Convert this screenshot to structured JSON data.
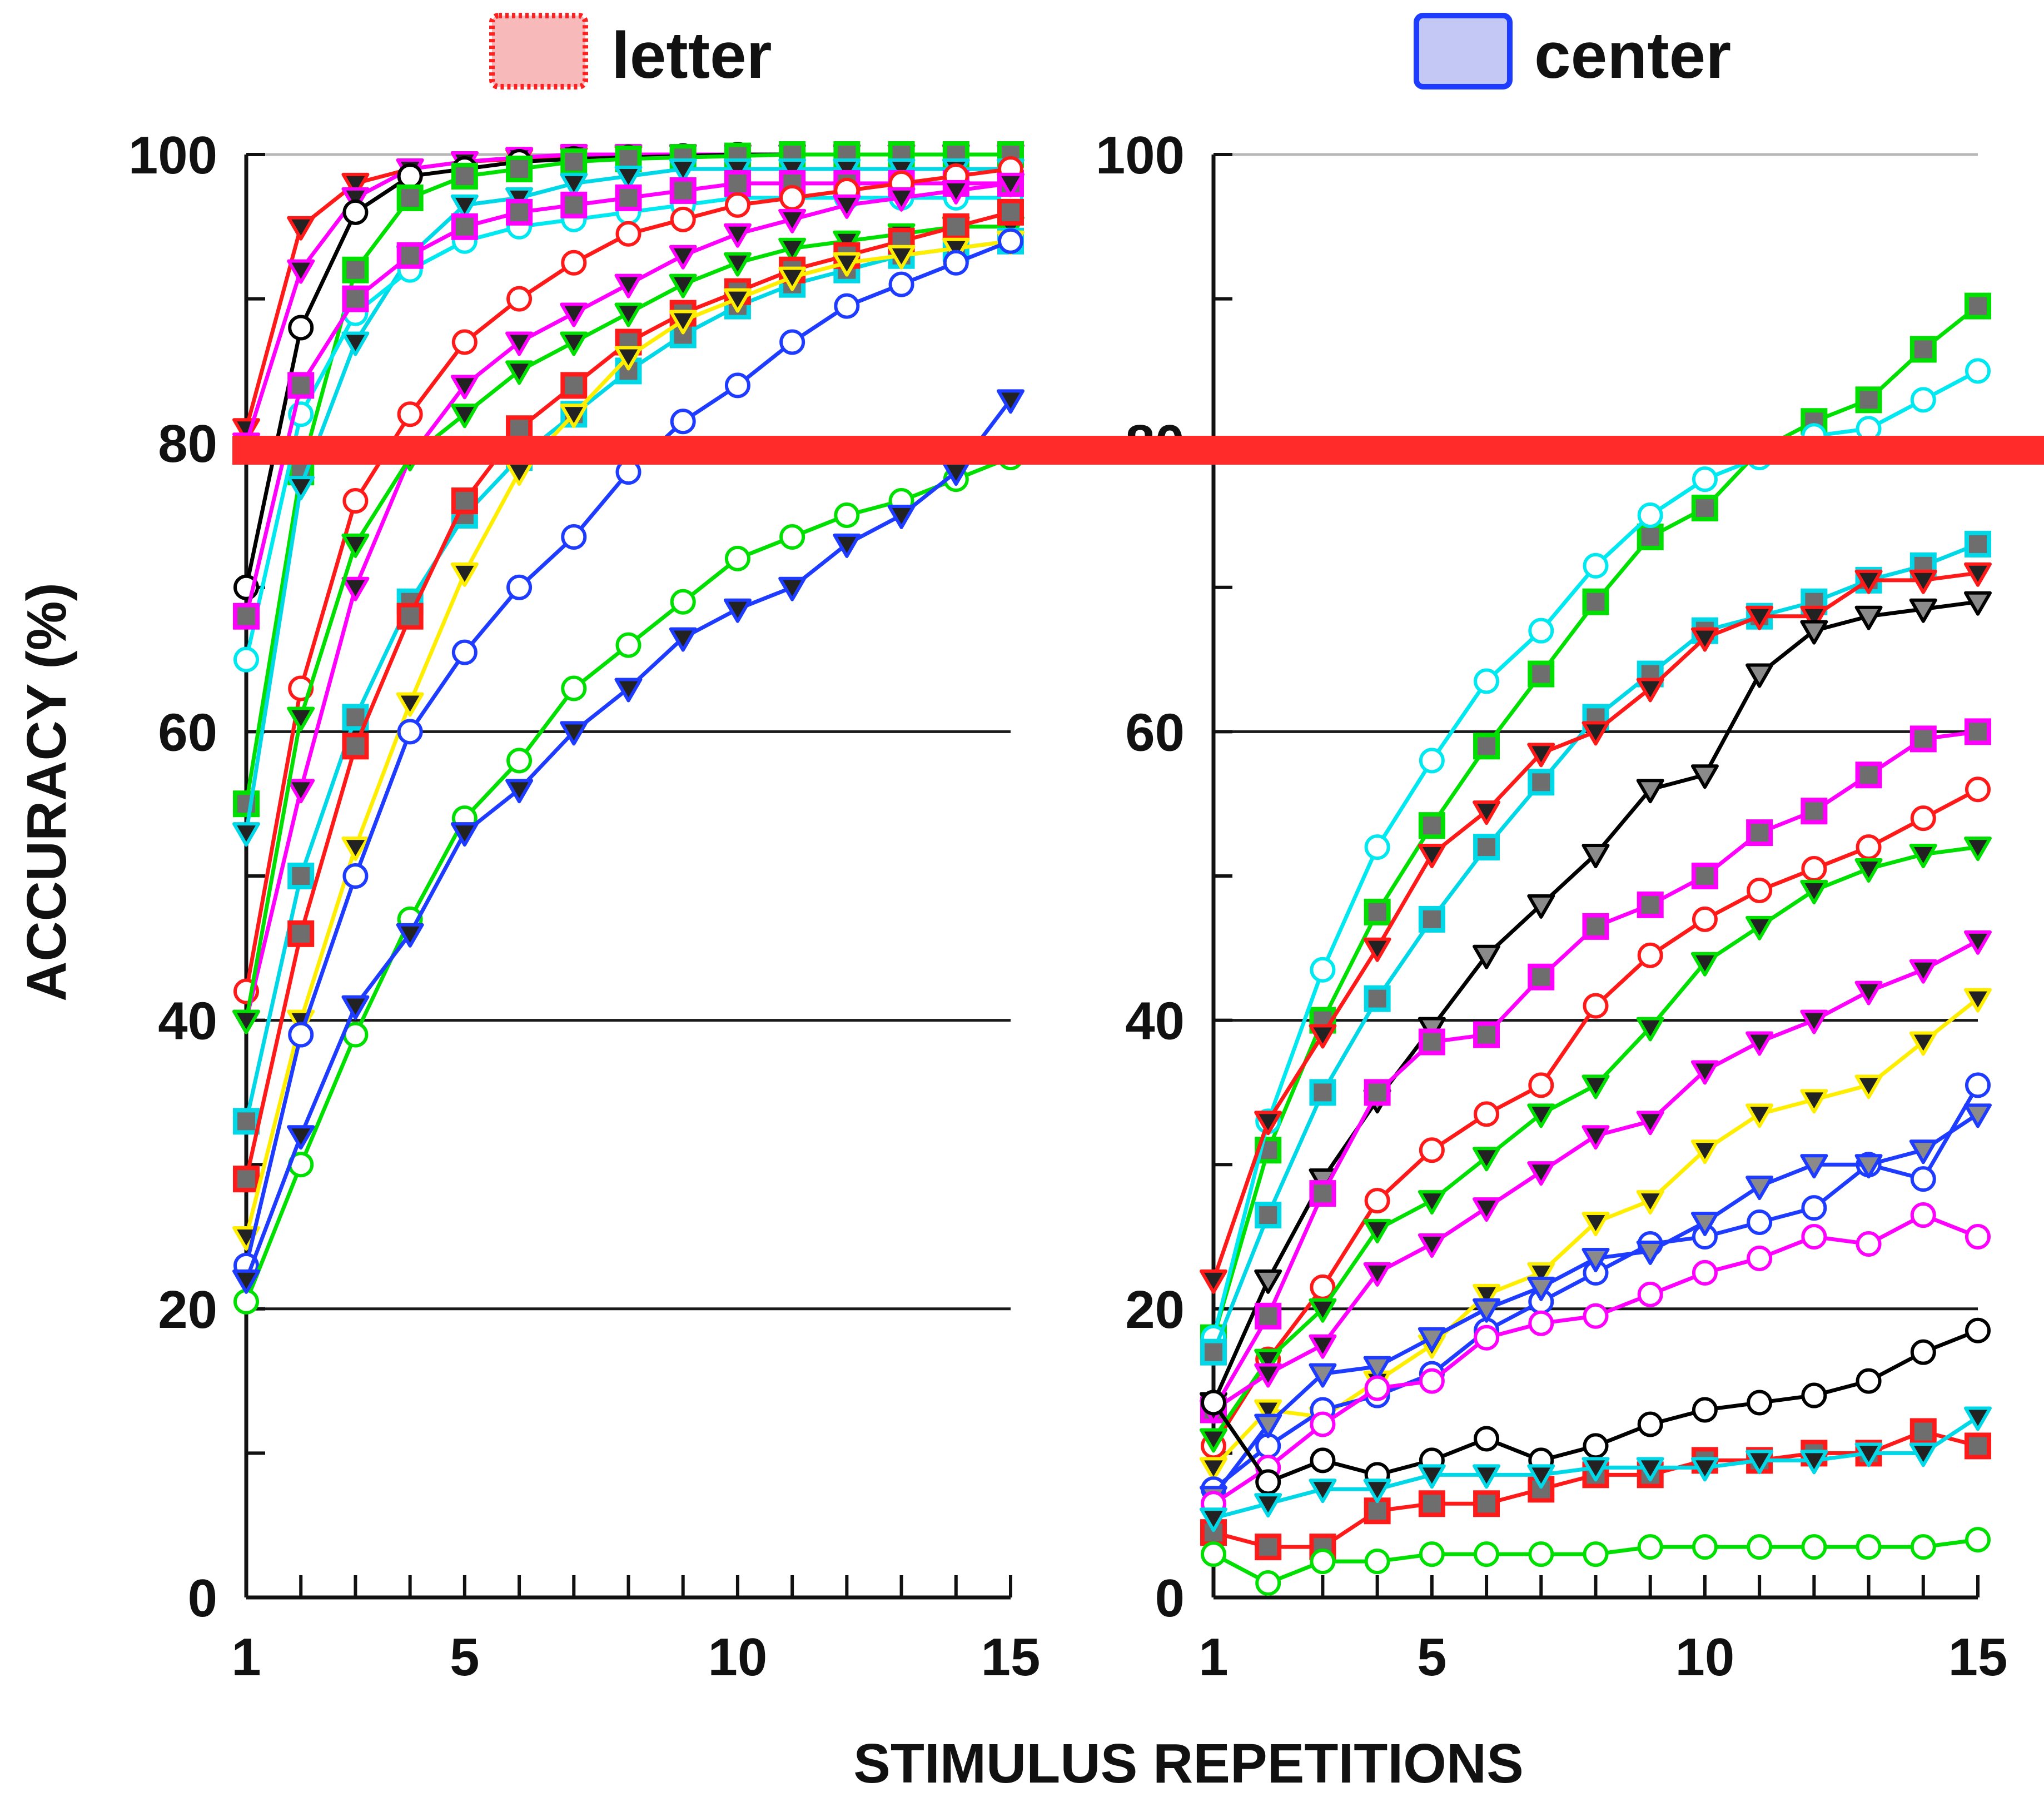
{
  "chart_data": [
    {
      "type": "line",
      "panel": "letter",
      "legend": {
        "label": "letter",
        "swatch_fill": "#f7b9b9",
        "swatch_stroke": "#ff2020",
        "swatch_style": "dotted"
      },
      "x": [
        1,
        2,
        3,
        4,
        5,
        6,
        7,
        8,
        9,
        10,
        11,
        12,
        13,
        14,
        15
      ],
      "ylim": [
        0,
        100
      ],
      "xlim": [
        1,
        15
      ],
      "y_ticks": [
        0,
        20,
        40,
        60,
        80,
        100
      ],
      "x_ticks": [
        1,
        5,
        10,
        15
      ],
      "ylabel": "ACCURACY (%)",
      "grid_y": [
        20,
        40,
        60,
        100
      ],
      "series": [
        {
          "color": "#ff1a1a",
          "marker": "triangle-filled",
          "values": [
            81,
            95,
            98,
            99,
            99.5,
            99.7,
            99.8,
            99.9,
            100,
            100,
            100,
            100,
            100,
            100,
            100
          ]
        },
        {
          "color": "#ff00ff",
          "marker": "triangle-filled",
          "values": [
            80,
            92,
            97,
            99,
            99.5,
            99.8,
            100,
            100,
            100,
            100,
            100,
            100,
            100,
            100,
            100
          ]
        },
        {
          "color": "#000000",
          "marker": "circle-open",
          "values": [
            70,
            88,
            96,
            98.5,
            99,
            99.5,
            99.7,
            99.8,
            99.9,
            100,
            100,
            100,
            100,
            100,
            100
          ]
        },
        {
          "color": "#00e000",
          "marker": "square-filled",
          "values": [
            55,
            78,
            92,
            97,
            98.5,
            99,
            99.5,
            99.7,
            99.8,
            99.9,
            100,
            100,
            100,
            100,
            100
          ]
        },
        {
          "color": "#00d8e8",
          "marker": "triangle-filled",
          "values": [
            53,
            77,
            87,
            93,
            96.5,
            97,
            98,
            98.5,
            99,
            99,
            99,
            99,
            99,
            99,
            99
          ]
        },
        {
          "color": "#00e8f0",
          "marker": "circle-open",
          "values": [
            65,
            82,
            89,
            92,
            94,
            95,
            95.5,
            96,
            96.5,
            97,
            97,
            97,
            97,
            97,
            97
          ]
        },
        {
          "color": "#ff00ff",
          "marker": "square-filled",
          "values": [
            68,
            84,
            90,
            93,
            95,
            96,
            96.5,
            97,
            97.5,
            98,
            98,
            98,
            98,
            98,
            98
          ]
        },
        {
          "color": "#ff1a1a",
          "marker": "circle-open",
          "values": [
            42,
            63,
            76,
            82,
            87,
            90,
            92.5,
            94.5,
            95.5,
            96.5,
            97,
            97.5,
            98,
            98.5,
            99
          ]
        },
        {
          "color": "#ff00ff",
          "marker": "triangle-filled",
          "values": [
            40,
            56,
            70,
            79,
            84,
            87,
            89,
            91,
            93,
            94.5,
            95.5,
            96.5,
            97,
            97.5,
            98
          ]
        },
        {
          "color": "#00e000",
          "marker": "triangle-filled",
          "values": [
            40,
            61,
            73,
            79,
            82,
            85,
            87,
            89,
            91,
            92.5,
            93.5,
            94,
            94.5,
            95,
            95
          ]
        },
        {
          "color": "#00d8e8",
          "marker": "square-filled",
          "values": [
            33,
            50,
            61,
            69,
            75,
            79,
            82,
            85,
            87.5,
            89.5,
            91,
            92,
            93,
            93.5,
            94
          ]
        },
        {
          "color": "#ff1a1a",
          "marker": "square-filled",
          "values": [
            29,
            46,
            59,
            68,
            76,
            81,
            84,
            87,
            89,
            90.5,
            92,
            93,
            94,
            95,
            96
          ]
        },
        {
          "color": "#ffee00",
          "marker": "triangle-filled",
          "values": [
            25,
            40,
            52,
            62,
            71,
            78,
            82,
            86,
            88.5,
            90,
            91.5,
            92.5,
            93,
            93.5,
            94
          ]
        },
        {
          "color": "#1e3cff",
          "marker": "circle-open",
          "values": [
            23,
            39,
            50,
            60,
            65.5,
            70,
            73.5,
            78,
            81.5,
            84,
            87,
            89.5,
            91,
            92.5,
            94
          ]
        },
        {
          "color": "#00e000",
          "marker": "circle-open",
          "values": [
            20.5,
            30,
            39,
            47,
            54,
            58,
            63,
            66,
            69,
            72,
            73.5,
            75,
            76,
            77.5,
            79
          ]
        },
        {
          "color": "#1e3cff",
          "marker": "triangle-filled",
          "values": [
            22,
            32,
            41,
            46,
            53,
            56,
            60,
            63,
            66.5,
            68.5,
            70,
            73,
            75,
            78,
            83
          ]
        }
      ]
    },
    {
      "type": "line",
      "panel": "center",
      "legend": {
        "label": "center",
        "swatch_fill": "#c4c8f4",
        "swatch_stroke": "#1e3cff",
        "swatch_style": "solid"
      },
      "x": [
        1,
        2,
        3,
        4,
        5,
        6,
        7,
        8,
        9,
        10,
        11,
        12,
        13,
        14,
        15
      ],
      "ylim": [
        0,
        100
      ],
      "xlim": [
        1,
        15
      ],
      "y_ticks": [
        0,
        20,
        40,
        60,
        80,
        100
      ],
      "x_ticks": [
        1,
        5,
        10,
        15
      ],
      "xlabel": "STIMULUS REPETITIONS",
      "grid_y": [
        20,
        40,
        60,
        100
      ],
      "series": [
        {
          "color": "#00e000",
          "marker": "square-filled",
          "values": [
            18,
            31,
            40,
            47.5,
            53.5,
            59,
            64,
            69,
            73.5,
            75.5,
            79.5,
            81.5,
            83,
            86.5,
            89.5
          ]
        },
        {
          "color": "#00e8f0",
          "marker": "circle-open",
          "values": [
            18,
            33,
            43.5,
            52,
            58,
            63.5,
            67,
            71.5,
            75,
            77.5,
            79,
            80.5,
            81,
            83,
            85
          ]
        },
        {
          "color": "#00d8e8",
          "marker": "square-filled",
          "values": [
            17,
            26.5,
            35,
            41.5,
            47,
            52,
            56.5,
            61,
            64,
            67,
            68,
            69,
            70.5,
            71.5,
            73
          ]
        },
        {
          "color": "#ff1a1a",
          "marker": "triangle-filled",
          "values": [
            22,
            33,
            39,
            45,
            51.5,
            54.5,
            58.5,
            60,
            63,
            66.5,
            68,
            68,
            70.5,
            70.5,
            71
          ]
        },
        {
          "color": "#000000",
          "marker": "triangle-open",
          "values": [
            13.5,
            22,
            29,
            34.5,
            39.5,
            44.5,
            48,
            51.5,
            56,
            57,
            64,
            67,
            68,
            68.5,
            69
          ]
        },
        {
          "color": "#ff00ff",
          "marker": "square-filled",
          "values": [
            13,
            19.5,
            28,
            35,
            38.5,
            39,
            43,
            46.5,
            48,
            50,
            53,
            54.5,
            57,
            59.5,
            60
          ]
        },
        {
          "color": "#ff1a1a",
          "marker": "circle-open",
          "values": [
            10.5,
            16.5,
            21.5,
            27.5,
            31,
            33.5,
            35.5,
            41,
            44.5,
            47,
            49,
            50.5,
            52,
            54,
            56
          ]
        },
        {
          "color": "#00e000",
          "marker": "triangle-filled",
          "values": [
            11,
            16.5,
            20,
            25.5,
            27.5,
            30.5,
            33.5,
            35.5,
            39.5,
            44,
            46.5,
            49,
            50.5,
            51.5,
            52
          ]
        },
        {
          "color": "#ff00ff",
          "marker": "triangle-filled",
          "values": [
            13,
            15.5,
            17.5,
            22.5,
            24.5,
            27,
            29.5,
            32,
            33,
            36.5,
            38.5,
            40,
            42,
            43.5,
            45.5
          ]
        },
        {
          "color": "#ffee00",
          "marker": "triangle-filled",
          "values": [
            9,
            13,
            12.5,
            15,
            17.5,
            21,
            22.5,
            26,
            27.5,
            31,
            33.5,
            34.5,
            35.5,
            38.5,
            41.5
          ]
        },
        {
          "color": "#1e3cff",
          "marker": "circle-open",
          "values": [
            7.5,
            10.5,
            13,
            14,
            15.5,
            18.5,
            20.5,
            22.5,
            24.5,
            25,
            26,
            27,
            30,
            29,
            35.5
          ]
        },
        {
          "color": "#1e3cff",
          "marker": "triangle-open",
          "values": [
            7,
            12,
            15.5,
            16,
            18,
            20,
            21.5,
            23.5,
            24,
            26,
            28.5,
            30,
            30,
            31,
            33.5
          ]
        },
        {
          "color": "#ff00ff",
          "marker": "circle-open",
          "values": [
            6.5,
            9,
            12,
            14.5,
            15,
            18,
            19,
            19.5,
            21,
            22.5,
            23.5,
            25,
            24.5,
            26.5,
            25
          ]
        },
        {
          "color": "#000000",
          "marker": "circle-open",
          "values": [
            13.5,
            8,
            9.5,
            8.5,
            9.5,
            11,
            9.5,
            10.5,
            12,
            13,
            13.5,
            14,
            15,
            17,
            18.5
          ]
        },
        {
          "color": "#ff1a1a",
          "marker": "square-filled",
          "values": [
            4.5,
            3.5,
            3.5,
            6,
            6.5,
            6.5,
            7.5,
            8.5,
            8.5,
            9.5,
            9.5,
            10,
            10,
            11.5,
            10.5
          ]
        },
        {
          "color": "#00d8e8",
          "marker": "triangle-filled",
          "values": [
            5.5,
            6.5,
            7.5,
            7.5,
            8.5,
            8.5,
            8.5,
            9,
            9,
            9,
            9.5,
            9.5,
            10,
            10,
            12.5
          ]
        },
        {
          "color": "#00e000",
          "marker": "circle-open",
          "values": [
            3,
            1,
            2.5,
            2.5,
            3,
            3,
            3,
            3,
            3.5,
            3.5,
            3.5,
            3.5,
            3.5,
            3.5,
            4
          ]
        }
      ]
    }
  ]
}
